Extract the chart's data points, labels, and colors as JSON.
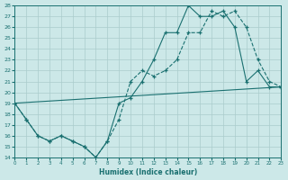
{
  "xlabel": "Humidex (Indice chaleur)",
  "bg_color": "#cce8e8",
  "grid_color": "#aacccc",
  "line_color": "#1a7070",
  "xlim": [
    0,
    23
  ],
  "ylim": [
    14,
    28
  ],
  "xticks": [
    0,
    1,
    2,
    3,
    4,
    5,
    6,
    7,
    8,
    9,
    10,
    11,
    12,
    13,
    14,
    15,
    16,
    17,
    18,
    19,
    20,
    21,
    22,
    23
  ],
  "yticks": [
    14,
    15,
    16,
    17,
    18,
    19,
    20,
    21,
    22,
    23,
    24,
    25,
    26,
    27,
    28
  ],
  "line1_x": [
    0,
    1,
    2,
    3,
    4,
    5,
    6,
    7,
    8,
    9,
    10,
    11,
    12,
    13,
    14,
    15,
    16,
    17,
    18,
    19,
    20,
    21,
    22,
    23
  ],
  "line1_y": [
    19.0,
    17.5,
    16.0,
    15.5,
    16.0,
    15.5,
    15.0,
    14.0,
    15.5,
    17.5,
    21.0,
    22.0,
    21.5,
    22.0,
    23.0,
    25.5,
    25.5,
    27.5,
    27.0,
    27.5,
    26.0,
    23.0,
    21.0,
    20.5
  ],
  "line2_x": [
    0,
    1,
    2,
    3,
    4,
    5,
    6,
    7,
    8,
    9,
    10,
    11,
    12,
    13,
    14,
    15,
    16,
    17,
    18,
    19,
    20,
    21,
    22,
    23
  ],
  "line2_y": [
    19.0,
    17.5,
    16.0,
    15.5,
    16.0,
    15.5,
    15.0,
    14.0,
    15.5,
    19.0,
    19.5,
    21.0,
    23.0,
    25.5,
    25.5,
    28.0,
    27.0,
    27.0,
    27.5,
    26.0,
    21.0,
    22.0,
    20.5,
    20.5
  ],
  "line3_x": [
    0,
    23
  ],
  "line3_y": [
    19.0,
    20.5
  ]
}
